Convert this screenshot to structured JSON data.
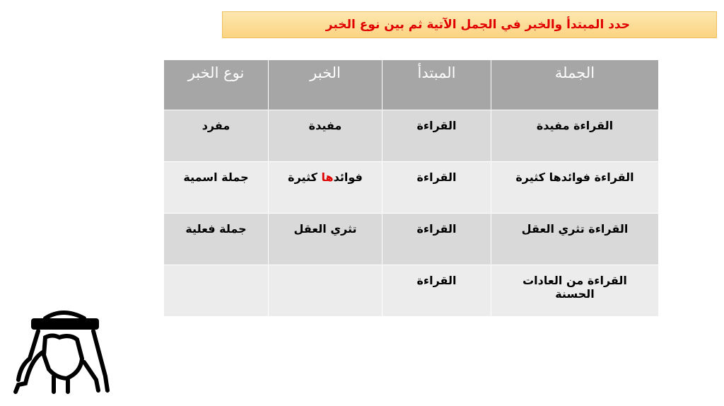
{
  "title": "حدد المبتدأ والخبر في الجمل الآتية ثم بين نوع الخبر",
  "table": {
    "headers": [
      "الجملة",
      "المبتدأ",
      "الخبر",
      "نوع الخبر"
    ],
    "rows": [
      {
        "sentence": "القراءة مفيدة",
        "subject": "القراءة",
        "predicate": "مفيدة",
        "type": "مفرد"
      },
      {
        "sentence": "القراءة فوائدها كثيرة",
        "subject": "القراءة",
        "predicate_a": "فوائد",
        "predicate_red": "ها",
        "predicate_b": " كثيرة",
        "type": "جملة اسمية"
      },
      {
        "sentence": "القراءة تثري العقل",
        "subject": "القراءة",
        "predicate": "تثري العقل",
        "type": "جملة فعلية"
      },
      {
        "sentence": "القراءة من العادات الحسنة",
        "subject": "القراءة",
        "predicate": "",
        "type": ""
      }
    ]
  },
  "colors": {
    "title_text": "#e00000",
    "header_bg": "#a6a6a6",
    "highlight": "#e00000"
  },
  "icons": {
    "figure": "man-with-keffiyeh-icon"
  }
}
